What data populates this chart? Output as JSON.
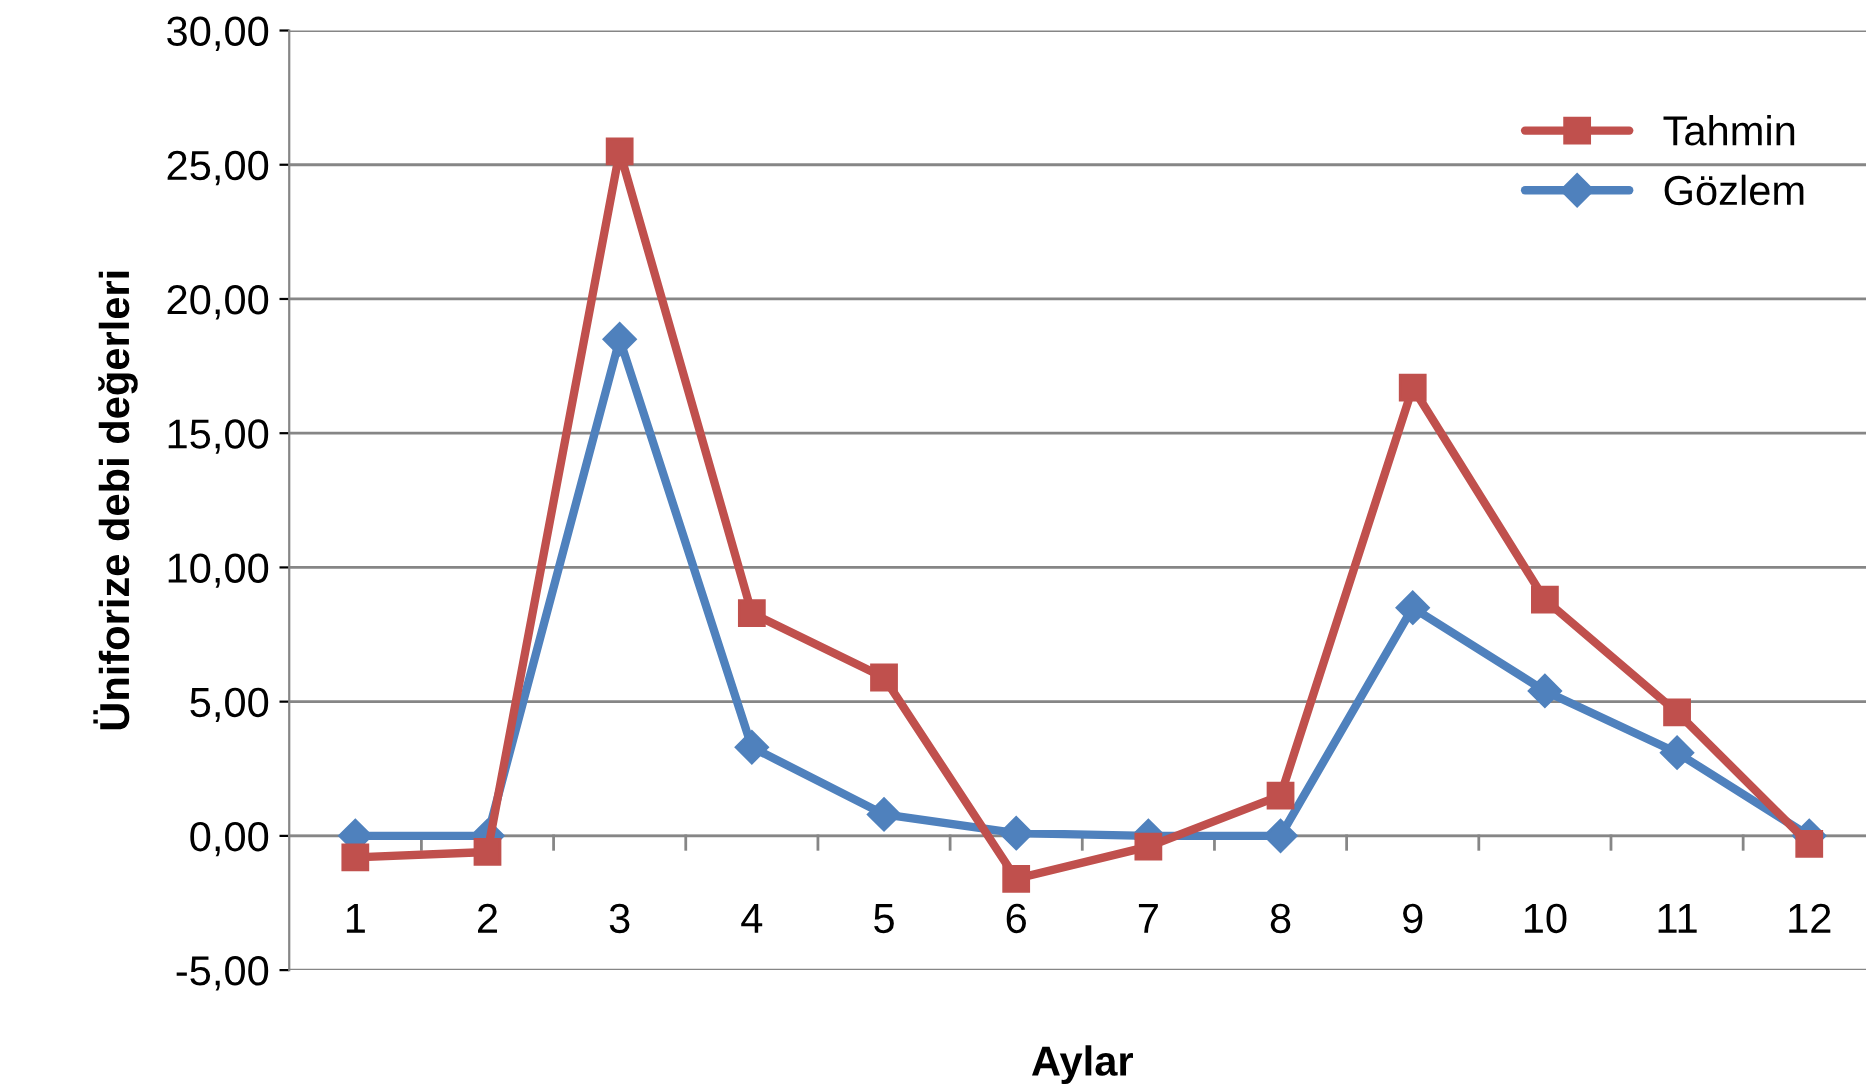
{
  "chart_data": {
    "type": "line",
    "xlabel": "Aylar",
    "ylabel": "Üniforize debi değerleri",
    "categories": [
      "1",
      "2",
      "3",
      "4",
      "5",
      "6",
      "7",
      "8",
      "9",
      "10",
      "11",
      "12"
    ],
    "series": [
      {
        "name": "Tahmin",
        "color": "#c0504d",
        "marker": "square",
        "values": [
          -0.8,
          -0.6,
          25.5,
          8.3,
          5.9,
          -1.6,
          -0.4,
          1.5,
          16.7,
          8.8,
          4.6,
          -0.3
        ]
      },
      {
        "name": "Gözlem",
        "color": "#4f81bd",
        "marker": "diamond",
        "values": [
          0,
          0,
          18.5,
          3.3,
          0.8,
          0.1,
          0,
          0,
          8.5,
          5.4,
          3.1,
          0
        ]
      }
    ],
    "ylim": [
      -5,
      30
    ],
    "yticks": [
      {
        "value": -5,
        "label": "-5,00"
      },
      {
        "value": 0,
        "label": "0,00"
      },
      {
        "value": 5,
        "label": "5,00"
      },
      {
        "value": 10,
        "label": "10,00"
      },
      {
        "value": 15,
        "label": "15,00"
      },
      {
        "value": 20,
        "label": "20,00"
      },
      {
        "value": 25,
        "label": "25,00"
      },
      {
        "value": 30,
        "label": "30,00"
      }
    ],
    "grid": "y",
    "legend": "top right",
    "line_style": "solid"
  }
}
